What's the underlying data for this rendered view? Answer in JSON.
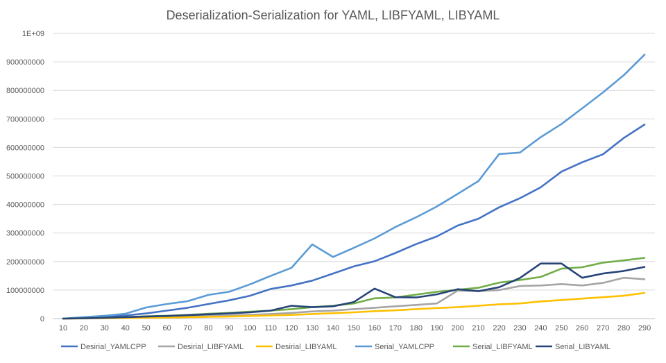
{
  "chart_data": {
    "type": "line",
    "title": "Deserialization-Serialization for YAML, LIBFYAML, LIBYAML",
    "xlabel": "",
    "ylabel": "",
    "ylim": [
      0,
      1000000000
    ],
    "y_ticks": [
      "0",
      "100000000",
      "200000000",
      "300000000",
      "400000000",
      "500000000",
      "600000000",
      "700000000",
      "800000000",
      "900000000",
      "1E+09"
    ],
    "grid": true,
    "legend_position": "bottom",
    "categories": [
      10,
      20,
      30,
      40,
      50,
      60,
      70,
      80,
      90,
      100,
      110,
      120,
      130,
      140,
      150,
      160,
      170,
      180,
      190,
      200,
      210,
      220,
      230,
      240,
      250,
      260,
      270,
      280,
      290
    ],
    "series": [
      {
        "name": "Desirial_YAMLCPP",
        "color": "#4472c4",
        "values": [
          0,
          3000000,
          6000000,
          11000000,
          18000000,
          28000000,
          38000000,
          51000000,
          64000000,
          80000000,
          104000000,
          116000000,
          133000000,
          158000000,
          183000000,
          201000000,
          230000000,
          261000000,
          288000000,
          326000000,
          350000000,
          390000000,
          422000000,
          460000000,
          515000000,
          548000000,
          576000000,
          633000000,
          680000000
        ]
      },
      {
        "name": "Desirial_LIBFYAML",
        "color": "#a5a5a5",
        "values": [
          0,
          1000000,
          2000000,
          3000000,
          4000000,
          5000000,
          7000000,
          9000000,
          11000000,
          13000000,
          16000000,
          20000000,
          25000000,
          28000000,
          33000000,
          38000000,
          43000000,
          48000000,
          53000000,
          98000000,
          96000000,
          100000000,
          114000000,
          116000000,
          121000000,
          116000000,
          125000000,
          143000000,
          138000000
        ]
      },
      {
        "name": "Desirial_LIBYAML",
        "color": "#ffc000",
        "values": [
          0,
          500000,
          1000000,
          2000000,
          3000000,
          4000000,
          5000000,
          6000000,
          7000000,
          9000000,
          11000000,
          13000000,
          16000000,
          19000000,
          22000000,
          26000000,
          29000000,
          33000000,
          37000000,
          40000000,
          45000000,
          50000000,
          53000000,
          60000000,
          65000000,
          70000000,
          75000000,
          80000000,
          90000000
        ]
      },
      {
        "name": "Serial_YAMLCPP",
        "color": "#5b9bd5",
        "values": [
          0,
          5000000,
          10000000,
          17000000,
          39000000,
          51000000,
          61000000,
          83000000,
          94000000,
          120000000,
          150000000,
          178000000,
          260000000,
          216000000,
          248000000,
          281000000,
          321000000,
          355000000,
          393000000,
          437000000,
          482000000,
          577000000,
          582000000,
          636000000,
          682000000,
          737000000,
          793000000,
          853000000,
          925000000
        ]
      },
      {
        "name": "Serial_LIBFYAML",
        "color": "#70ad47",
        "values": [
          0,
          1000000,
          3000000,
          5000000,
          8000000,
          10000000,
          13000000,
          17000000,
          20000000,
          24000000,
          28000000,
          33000000,
          40000000,
          45000000,
          53000000,
          71000000,
          74000000,
          84000000,
          94000000,
          101000000,
          108000000,
          126000000,
          135000000,
          146000000,
          175000000,
          180000000,
          196000000,
          204000000,
          213000000
        ]
      },
      {
        "name": "Serial_LIBYAML",
        "color": "#264478",
        "values": [
          0,
          1000000,
          3000000,
          5000000,
          7000000,
          9000000,
          12000000,
          15000000,
          18000000,
          22000000,
          28000000,
          45000000,
          40000000,
          43000000,
          58000000,
          105000000,
          75000000,
          74000000,
          85000000,
          103000000,
          96000000,
          110000000,
          142000000,
          193000000,
          193000000,
          143000000,
          158000000,
          167000000,
          181000000
        ]
      }
    ]
  }
}
